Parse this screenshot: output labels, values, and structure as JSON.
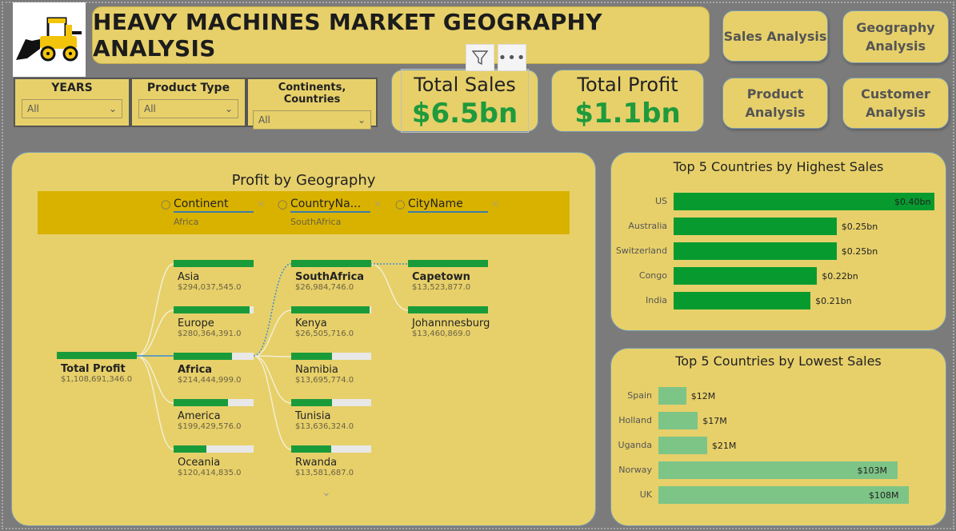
{
  "title": "HEAVY MACHINES MARKET GEOGRAPHY ANALYSIS",
  "nav": {
    "sales": "Sales Analysis",
    "geography": "Geography Analysis",
    "product": "Product Analysis",
    "customer": "Customer Analysis"
  },
  "slicers": [
    {
      "label": "YEARS",
      "value": "All"
    },
    {
      "label": "Product Type",
      "value": "All"
    },
    {
      "label": "Continents, Countries",
      "value": "All"
    }
  ],
  "cards": {
    "total_sales": {
      "label": "Total Sales",
      "value": "$6.5bn"
    },
    "total_profit": {
      "label": "Total Profit",
      "value": "$1.1bn"
    }
  },
  "decomp": {
    "title": "Profit by Geography",
    "levels": [
      {
        "name": "Continent",
        "selected": "Africa"
      },
      {
        "name": "CountryNa...",
        "selected": "SouthAfrica"
      },
      {
        "name": "CityName",
        "selected": ""
      }
    ],
    "root": {
      "name": "Total Profit",
      "value": "$1,108,691,346.0",
      "fill": 1.0
    },
    "continents": [
      {
        "name": "Asia",
        "value": "$294,037,545.0",
        "fill": 1.0
      },
      {
        "name": "Europe",
        "value": "$280,364,391.0",
        "fill": 0.95
      },
      {
        "name": "Africa",
        "value": "$214,444,999.0",
        "fill": 0.73
      },
      {
        "name": "America",
        "value": "$199,429,576.0",
        "fill": 0.68
      },
      {
        "name": "Oceania",
        "value": "$120,414,835.0",
        "fill": 0.41
      }
    ],
    "countries": [
      {
        "name": "SouthAfrica",
        "value": "$26,984,746.0",
        "fill": 1.0
      },
      {
        "name": "Kenya",
        "value": "$26,505,716.0",
        "fill": 0.98
      },
      {
        "name": "Namibia",
        "value": "$13,695,774.0",
        "fill": 0.51
      },
      {
        "name": "Tunisia",
        "value": "$13,636,324.0",
        "fill": 0.51
      },
      {
        "name": "Rwanda",
        "value": "$13,581,687.0",
        "fill": 0.5
      }
    ],
    "cities": [
      {
        "name": "Capetown",
        "value": "$13,523,877.0",
        "fill": 1.0
      },
      {
        "name": "Johannnesburg",
        "value": "$13,460,869.0",
        "fill": 1.0
      }
    ]
  },
  "colors": {
    "accent_green": "#1a9b3a",
    "light_green": "#7dc487",
    "panel_yellow": "#e7d06a",
    "band_gold": "#d9b200"
  },
  "chart_data": [
    {
      "type": "bar",
      "orientation": "horizontal",
      "title": "Top 5 Countries by Highest Sales",
      "categories": [
        "US",
        "Australia",
        "Switzerland",
        "Congo",
        "India"
      ],
      "values": [
        0.4,
        0.25,
        0.25,
        0.22,
        0.21
      ],
      "labels": [
        "$0.40bn",
        "$0.25bn",
        "$0.25bn",
        "$0.22bn",
        "$0.21bn"
      ],
      "unit": "bn",
      "color": "#079b2f"
    },
    {
      "type": "bar",
      "orientation": "horizontal",
      "title": "Top 5 Countries by Lowest Sales",
      "categories": [
        "Spain",
        "Holland",
        "Uganda",
        "Norway",
        "UK"
      ],
      "values": [
        12,
        17,
        21,
        103,
        108
      ],
      "labels": [
        "$12M",
        "$17M",
        "$21M",
        "$103M",
        "$108M"
      ],
      "unit": "M",
      "color": "#7dc487"
    }
  ]
}
